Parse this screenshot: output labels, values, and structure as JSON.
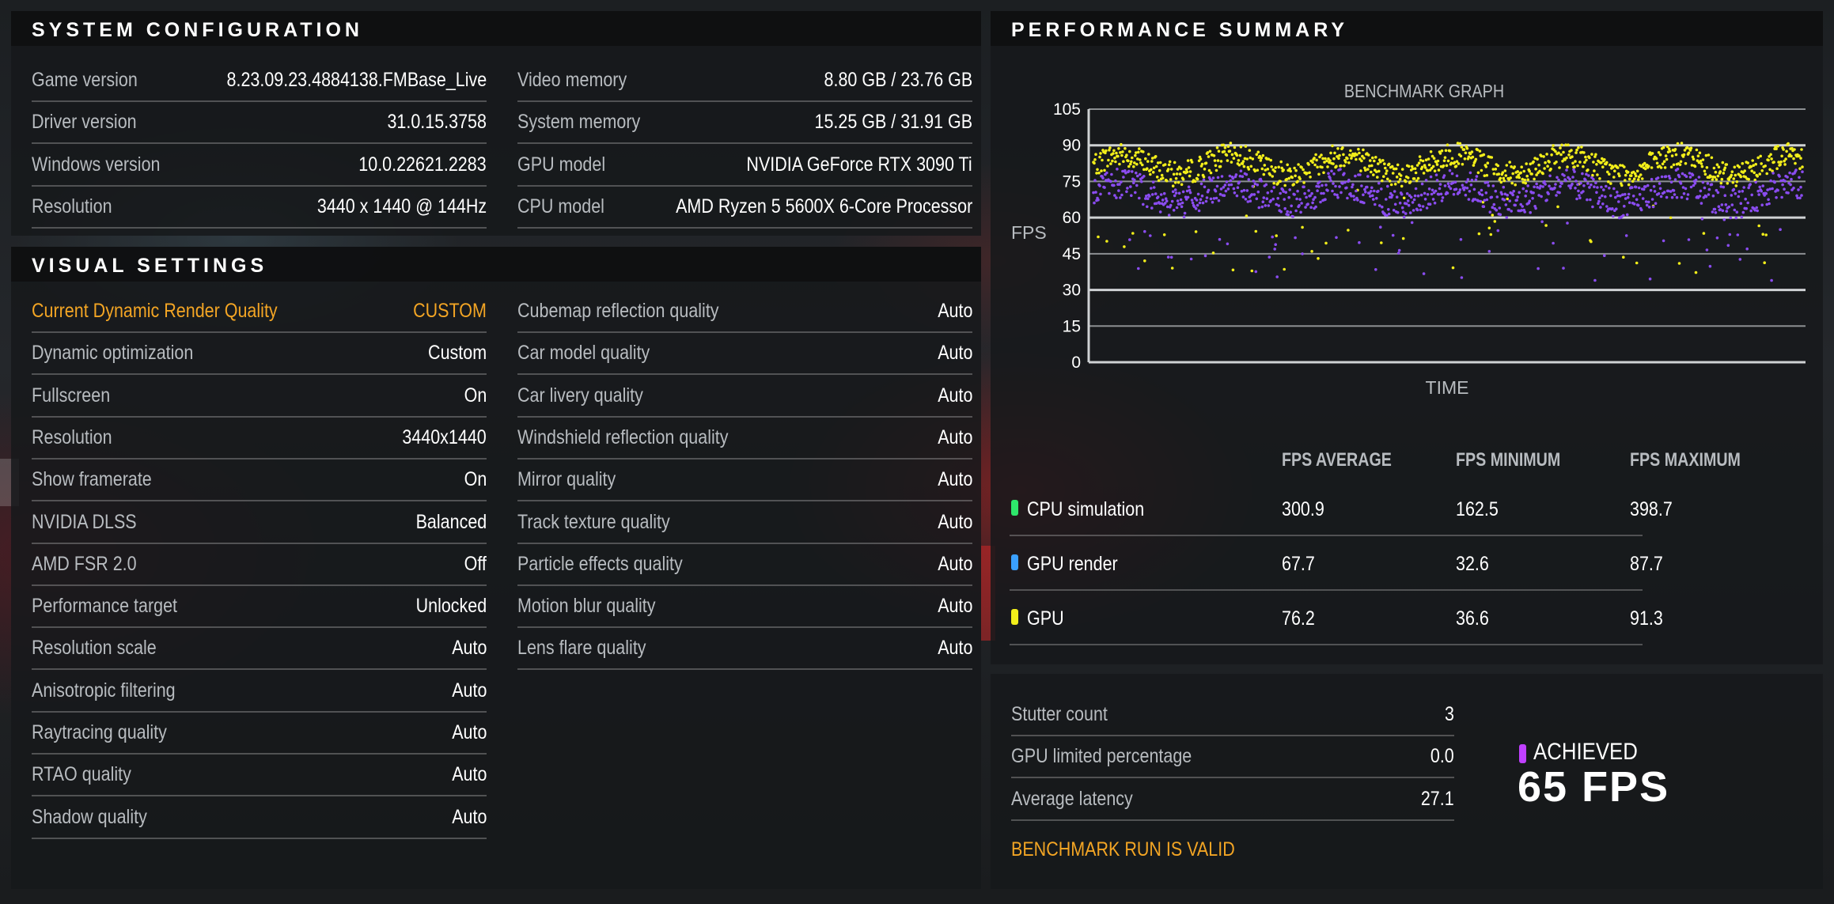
{
  "system_configuration": {
    "title": "SYSTEM CONFIGURATION",
    "left_rows": [
      {
        "label": "Game version",
        "value": "8.23.09.23.4884138.FMBase_Live"
      },
      {
        "label": "Driver version",
        "value": "31.0.15.3758"
      },
      {
        "label": "Windows version",
        "value": "10.0.22621.2283"
      },
      {
        "label": "Resolution",
        "value": "3440 x 1440 @ 144Hz"
      }
    ],
    "right_rows": [
      {
        "label": "Video memory",
        "value": "8.80 GB / 23.76 GB"
      },
      {
        "label": "System memory",
        "value": "15.25 GB / 31.91 GB"
      },
      {
        "label": "GPU model",
        "value": "NVIDIA GeForce RTX 3090 Ti"
      },
      {
        "label": "CPU model",
        "value": "AMD Ryzen 5 5600X 6-Core Processor"
      }
    ]
  },
  "visual_settings": {
    "title": "VISUAL SETTINGS",
    "left_rows": [
      {
        "label": "Current Dynamic Render Quality",
        "value": "CUSTOM"
      },
      {
        "label": "Dynamic optimization",
        "value": "Custom"
      },
      {
        "label": "Fullscreen",
        "value": "On"
      },
      {
        "label": "Resolution",
        "value": "3440x1440"
      },
      {
        "label": "Show framerate",
        "value": "On"
      },
      {
        "label": "NVIDIA DLSS",
        "value": "Balanced"
      },
      {
        "label": "AMD FSR 2.0",
        "value": "Off"
      },
      {
        "label": "Performance target",
        "value": "Unlocked"
      },
      {
        "label": "Resolution scale",
        "value": "Auto"
      },
      {
        "label": "Anisotropic filtering",
        "value": "Auto"
      },
      {
        "label": "Raytracing quality",
        "value": "Auto"
      },
      {
        "label": "RTAO quality",
        "value": "Auto"
      },
      {
        "label": "Shadow quality",
        "value": "Auto"
      }
    ],
    "right_rows": [
      {
        "label": "Cubemap reflection quality",
        "value": "Auto"
      },
      {
        "label": "Car model quality",
        "value": "Auto"
      },
      {
        "label": "Car livery quality",
        "value": "Auto"
      },
      {
        "label": "Windshield reflection quality",
        "value": "Auto"
      },
      {
        "label": "Mirror quality",
        "value": "Auto"
      },
      {
        "label": "Track texture quality",
        "value": "Auto"
      },
      {
        "label": "Particle effects quality",
        "value": "Auto"
      },
      {
        "label": "Motion blur quality",
        "value": "Auto"
      },
      {
        "label": "Lens flare quality",
        "value": "Auto"
      }
    ],
    "highlight_color": "#f3a524"
  },
  "performance_summary": {
    "title": "PERFORMANCE SUMMARY",
    "stats_headers": [
      "FPS AVERAGE",
      "FPS MINIMUM",
      "FPS MAXIMUM"
    ],
    "stats_rows": [
      {
        "name": "CPU simulation",
        "color": "#2ee66b",
        "avg": "300.9",
        "min": "162.5",
        "max": "398.7"
      },
      {
        "name": "GPU render",
        "color": "#3aa0ff",
        "avg": "67.7",
        "min": "32.6",
        "max": "87.7"
      },
      {
        "name": "GPU",
        "color": "#f2ee1a",
        "avg": "76.2",
        "min": "36.6",
        "max": "91.3"
      }
    ],
    "extra_rows": [
      {
        "label": "Stutter count",
        "value": "3"
      },
      {
        "label": "GPU limited percentage",
        "value": "0.0"
      },
      {
        "label": "Average latency",
        "value": "27.1"
      }
    ],
    "achieved_label": "ACHIEVED",
    "achieved_value": "65 FPS",
    "achieved_color": "#c040ff",
    "valid_text": "BENCHMARK RUN IS VALID"
  },
  "chart_data": {
    "type": "scatter",
    "title": "BENCHMARK GRAPH",
    "xlabel": "TIME",
    "ylabel": "FPS",
    "ylim": [
      0,
      105
    ],
    "yticks": [
      0,
      15,
      30,
      45,
      60,
      75,
      90,
      105
    ],
    "grid": true,
    "series": [
      {
        "name": "GPU",
        "color": "#f2ee1a",
        "typical_range": [
          70,
          90
        ],
        "min": 36.6,
        "max": 91.3
      },
      {
        "name": "GPU render",
        "color": "#8a4cf0",
        "typical_range": [
          55,
          80
        ],
        "min": 32.6,
        "max": 87.7
      }
    ]
  }
}
